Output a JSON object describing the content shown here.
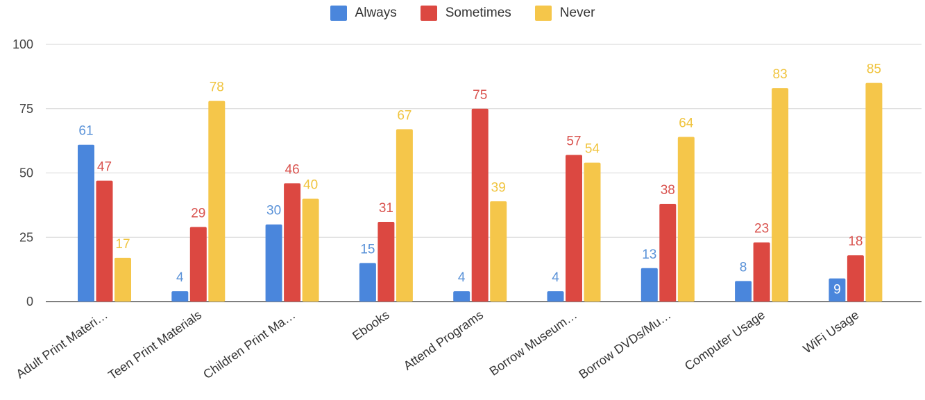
{
  "chart_data": {
    "type": "bar",
    "title": "",
    "xlabel": "",
    "ylabel": "",
    "ylim": [
      0,
      100
    ],
    "yticks": [
      0,
      25,
      50,
      75,
      100
    ],
    "grid": true,
    "legend_position": "top-center",
    "categories": [
      "Adult Print Materi…",
      "Teen Print Materials",
      "Children Print Ma…",
      "Ebooks",
      "Attend Programs",
      "Borrow Museum…",
      "Borrow DVDs/Mu…",
      "Computer Usage",
      "WiFi Usage"
    ],
    "series": [
      {
        "name": "Always",
        "color": "#4a86dc",
        "label_color": "#5a92d8",
        "values": [
          61,
          4,
          30,
          15,
          4,
          4,
          13,
          8,
          9
        ]
      },
      {
        "name": "Sometimes",
        "color": "#dc4841",
        "label_color": "#d9534f",
        "values": [
          47,
          29,
          46,
          31,
          75,
          57,
          38,
          23,
          18
        ]
      },
      {
        "name": "Never",
        "color": "#f5c64a",
        "label_color": "#f0c43e",
        "values": [
          17,
          78,
          40,
          67,
          39,
          54,
          64,
          83,
          85
        ]
      }
    ]
  }
}
